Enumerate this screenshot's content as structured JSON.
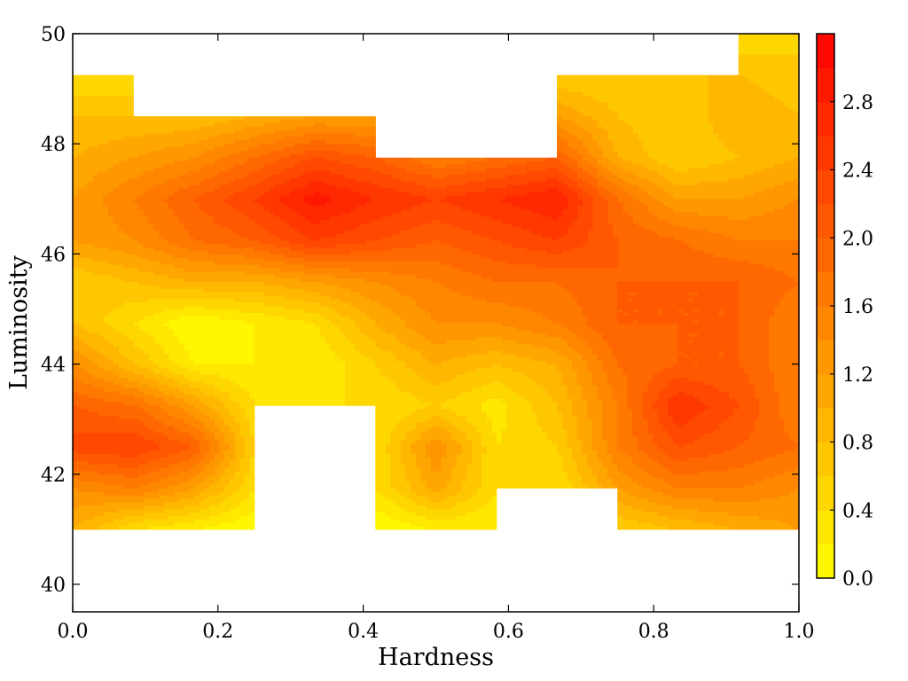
{
  "chart_data": {
    "type": "heatmap",
    "subtype": "filled-contour",
    "title": "",
    "xlabel": "Hardness",
    "ylabel": "Luminosity",
    "xlim": [
      0.0,
      1.0
    ],
    "ylim": [
      39.5,
      50.0
    ],
    "x_ticks": [
      0.0,
      0.2,
      0.4,
      0.6,
      0.8,
      1.0
    ],
    "x_tick_labels": [
      "0.0",
      "0.2",
      "0.4",
      "0.6",
      "0.8",
      "1.0"
    ],
    "y_ticks": [
      40,
      42,
      44,
      46,
      48,
      50
    ],
    "y_tick_labels": [
      "40",
      "42",
      "44",
      "46",
      "48",
      "50"
    ],
    "colorbar": {
      "range": [
        0.0,
        3.2
      ],
      "colormap": "autumn_r",
      "color_low": "#ffff00",
      "color_high": "#ff0000",
      "levels": [
        0.0,
        0.2,
        0.4,
        0.6,
        0.8,
        1.0,
        1.2,
        1.4,
        1.6,
        1.8,
        2.0,
        2.2,
        2.4,
        2.6,
        2.8,
        3.0,
        3.2
      ],
      "ticks": [
        0.0,
        0.4,
        0.8,
        1.2,
        1.6,
        2.0,
        2.4,
        2.8
      ],
      "tick_labels": [
        "0.0",
        "0.4",
        "0.8",
        "1.2",
        "1.6",
        "2.0",
        "2.4",
        "2.8"
      ]
    },
    "grid": false,
    "x": [
      0.0,
      0.0833,
      0.1667,
      0.25,
      0.3333,
      0.4167,
      0.5,
      0.5833,
      0.6667,
      0.75,
      0.8333,
      0.9167,
      1.0
    ],
    "y": [
      41.0,
      41.75,
      42.5,
      43.25,
      44.0,
      44.75,
      45.5,
      46.25,
      47.0,
      47.75,
      48.5,
      49.25,
      50.0
    ],
    "z": [
      [
        1.0,
        0.4,
        0.2,
        0.0,
        null,
        0.0,
        0.2,
        0.2,
        null,
        0.6,
        0.8,
        1.0,
        1.2
      ],
      [
        1.4,
        1.6,
        1.2,
        0.4,
        null,
        0.4,
        1.1,
        0.4,
        0.4,
        1.2,
        1.6,
        1.6,
        1.4
      ],
      [
        2.3,
        2.4,
        2.0,
        0.6,
        null,
        0.4,
        1.4,
        0.4,
        0.6,
        1.6,
        2.2,
        2.0,
        1.8
      ],
      [
        2.0,
        1.8,
        1.2,
        0.4,
        0.4,
        0.4,
        0.6,
        0.3,
        0.8,
        1.6,
        2.6,
        2.2,
        1.6
      ],
      [
        1.4,
        0.8,
        0.2,
        0.2,
        0.2,
        0.6,
        1.0,
        0.8,
        1.0,
        1.8,
        2.0,
        2.0,
        1.6
      ],
      [
        0.8,
        0.4,
        0.0,
        0.2,
        0.4,
        1.0,
        1.4,
        1.4,
        1.6,
        2.0,
        2.0,
        2.0,
        1.6
      ],
      [
        0.6,
        0.8,
        1.0,
        1.0,
        1.2,
        1.4,
        1.6,
        1.8,
        1.8,
        2.0,
        2.0,
        2.0,
        1.8
      ],
      [
        1.2,
        1.4,
        1.8,
        2.0,
        2.4,
        2.2,
        2.0,
        2.2,
        2.4,
        2.0,
        1.8,
        1.6,
        1.6
      ],
      [
        1.2,
        1.6,
        2.0,
        2.4,
        2.9,
        2.6,
        2.4,
        2.6,
        2.8,
        1.8,
        1.2,
        1.2,
        1.4
      ],
      [
        1.0,
        1.2,
        1.4,
        1.8,
        2.2,
        2.0,
        1.6,
        1.8,
        2.0,
        1.0,
        0.6,
        0.8,
        1.0
      ],
      [
        0.8,
        0.8,
        0.8,
        1.0,
        1.2,
        1.2,
        null,
        null,
        1.2,
        0.8,
        0.6,
        1.0,
        0.8
      ],
      [
        0.4,
        0.4,
        null,
        null,
        null,
        null,
        null,
        null,
        0.6,
        0.6,
        0.8,
        0.8,
        0.6
      ],
      [
        null,
        null,
        null,
        null,
        null,
        null,
        null,
        null,
        null,
        null,
        null,
        0.4,
        0.6
      ]
    ]
  }
}
